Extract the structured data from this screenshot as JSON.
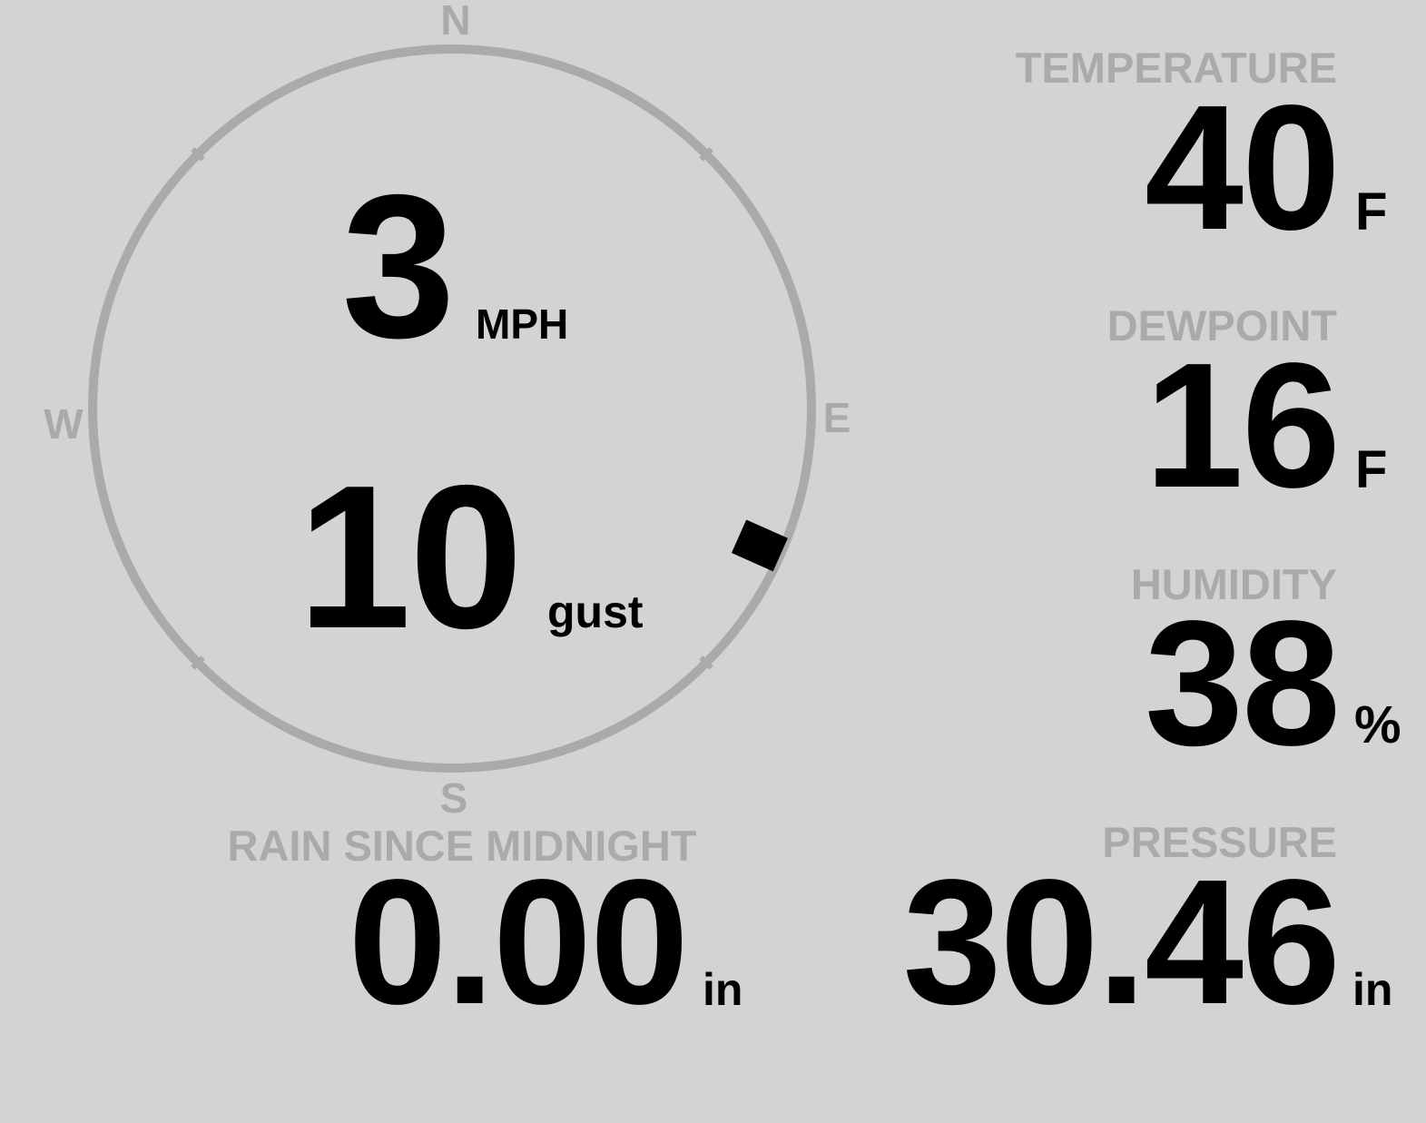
{
  "colors": {
    "background": "#d3d3d3",
    "label": "#aaaaaa",
    "value": "#000000",
    "ring": "#aaaaaa",
    "marker": "#000000"
  },
  "wind": {
    "compass": {
      "north": "N",
      "south": "S",
      "east": "E",
      "west": "W"
    },
    "direction_degrees": 114,
    "speed": "3",
    "speed_unit": "MPH",
    "gust": "10",
    "gust_label": "gust"
  },
  "temperature": {
    "label": "TEMPERATURE",
    "value": "40",
    "unit": "F"
  },
  "dewpoint": {
    "label": "DEWPOINT",
    "value": "16",
    "unit": "F"
  },
  "humidity": {
    "label": "HUMIDITY",
    "value": "38",
    "unit": "%"
  },
  "pressure": {
    "label": "PRESSURE",
    "value": "30.46",
    "unit": "in"
  },
  "rain": {
    "label": "RAIN SINCE MIDNIGHT",
    "value": "0.00",
    "unit": "in"
  }
}
